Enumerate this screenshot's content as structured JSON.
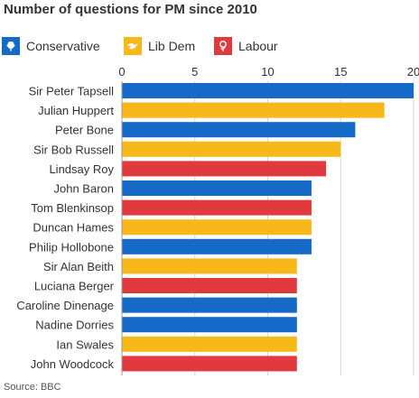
{
  "title": "Number of questions for PM since 2010",
  "source": "Source: BBC",
  "legend": [
    {
      "label": "Conservative",
      "color": "#1569c7",
      "icon": "conservative-tree-icon"
    },
    {
      "label": "Lib Dem",
      "color": "#f9b819",
      "icon": "libdem-bird-icon"
    },
    {
      "label": "Labour",
      "color": "#e03a3e",
      "icon": "labour-rose-icon"
    }
  ],
  "chart_data": {
    "type": "bar",
    "orientation": "horizontal",
    "title": "Number of questions for PM since 2010",
    "xlim": [
      0,
      20
    ],
    "xticks": [
      0,
      5,
      10,
      15,
      20
    ],
    "grid": true,
    "legend_position": "top",
    "colors": {
      "Conservative": "#1569c7",
      "Lib Dem": "#f9b819",
      "Labour": "#e03a3e"
    },
    "categories": [
      "Sir Peter Tapsell",
      "Julian Huppert",
      "Peter Bone",
      "Sir Bob Russell",
      "Lindsay Roy",
      "John Baron",
      "Tom Blenkinsop",
      "Duncan Hames",
      "Philip Hollobone",
      "Sir Alan Beith",
      "Luciana Berger",
      "Caroline Dinenage",
      "Nadine Dorries",
      "Ian Swales",
      "John Woodcock"
    ],
    "values": [
      20,
      18,
      16,
      15,
      14,
      13,
      13,
      13,
      13,
      12,
      12,
      12,
      12,
      12,
      12
    ],
    "party": [
      "Conservative",
      "Lib Dem",
      "Conservative",
      "Lib Dem",
      "Labour",
      "Conservative",
      "Labour",
      "Lib Dem",
      "Conservative",
      "Lib Dem",
      "Labour",
      "Conservative",
      "Conservative",
      "Lib Dem",
      "Labour"
    ]
  }
}
